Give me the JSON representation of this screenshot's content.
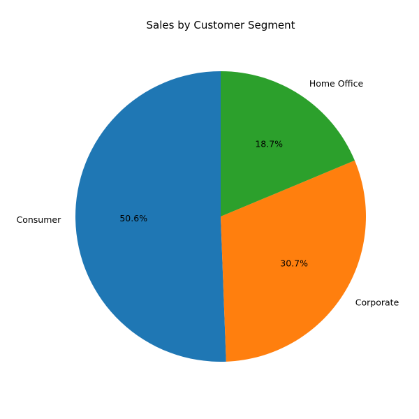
{
  "chart_data": {
    "type": "pie",
    "title": "Sales by Customer Segment",
    "categories": [
      "Consumer",
      "Corporate",
      "Home Office"
    ],
    "values": [
      50.6,
      30.7,
      18.7
    ],
    "percent_labels": [
      "50.6%",
      "30.7%",
      "18.7%"
    ],
    "colors": [
      "#1f77b4",
      "#ff7f0e",
      "#2ca02c"
    ],
    "start_angle_deg": 90,
    "direction": "counterclockwise",
    "legend": "none"
  }
}
